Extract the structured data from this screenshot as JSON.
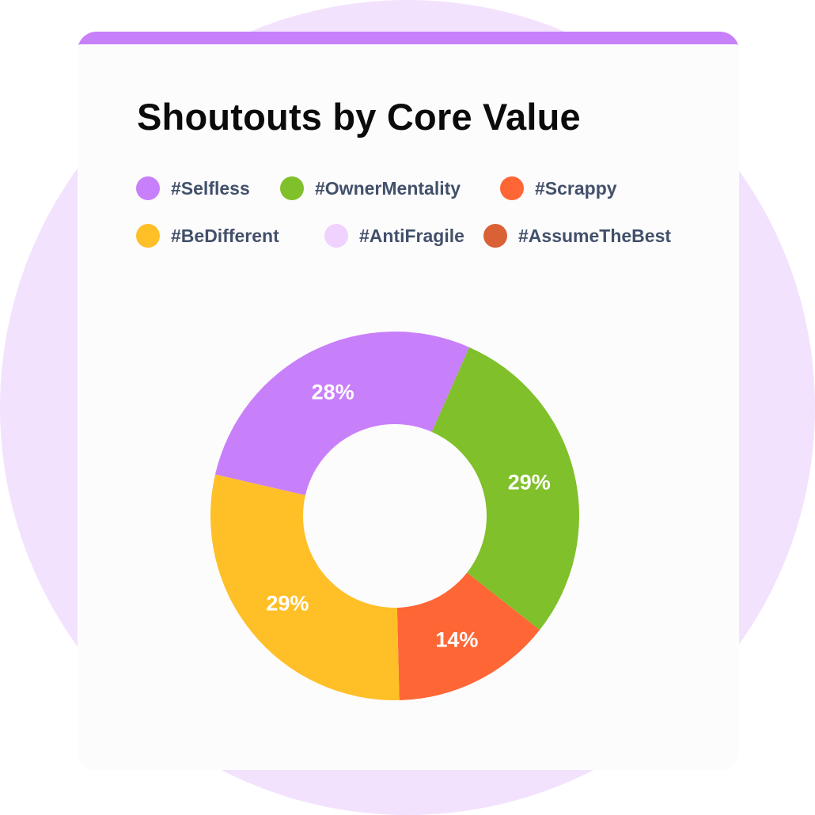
{
  "colors": {
    "background_circle": "#f3e2fe",
    "card": "#fdfcfd",
    "card_accent": "#c87ffa"
  },
  "chart_data": {
    "type": "pie",
    "title": "Shoutouts by Core Value",
    "legend_placement": "top",
    "donut": true,
    "categories": [
      "#Selfless",
      "#OwnerMentality",
      "#Scrappy",
      "#BeDifferent",
      "#AntiFragile",
      "#AssumeTheBest"
    ],
    "colors": [
      "#c87ffa",
      "#80c02a",
      "#ff6636",
      "#ffbf27",
      "#efd2fd",
      "#d96135"
    ],
    "slices": [
      {
        "name": "#Selfless",
        "value": 28,
        "label": "28%",
        "color": "#c87ffa"
      },
      {
        "name": "#OwnerMentality",
        "value": 29,
        "label": "29%",
        "color": "#80c02a"
      },
      {
        "name": "#Scrappy",
        "value": 14,
        "label": "14%",
        "color": "#ff6636"
      },
      {
        "name": "#BeDifferent",
        "value": 29,
        "label": "29%",
        "color": "#ffbf27"
      }
    ]
  }
}
